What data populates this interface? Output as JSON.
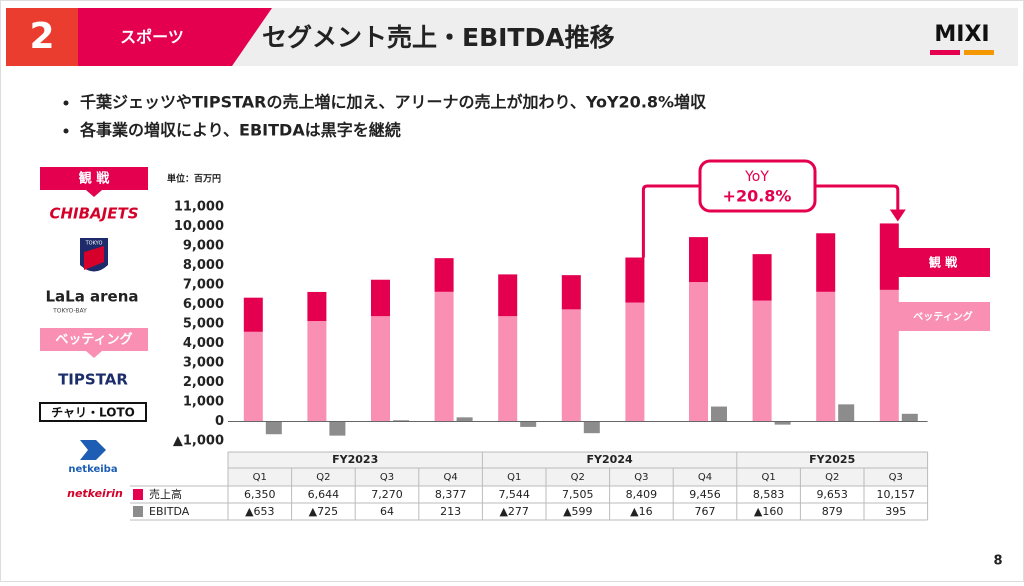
{
  "header": {
    "section_number": "2",
    "section": "スポーツ",
    "title": "セグメント売上・EBITDA推移",
    "logo": "MIXI"
  },
  "bullets": [
    "千葉ジェッツやTIPSTARの売上増に加え、アリーナの売上が加わり、YoY20.8%増収",
    "各事業の増収により、EBITDAは黒字を継続"
  ],
  "sidebar": {
    "watch": "観 戦",
    "watch_logos": [
      "CHIBAJETS",
      "TOKYO",
      "LaLa arena",
      "TOKYO-BAY"
    ],
    "betting": "ベッティング",
    "betting_logos": [
      "TIPSTAR",
      "チャリ・LOTO",
      "netkeiba",
      "netkeirin"
    ]
  },
  "chart_data": {
    "type": "stacked_bar",
    "unit_label": "単位：百万円",
    "groups": [
      {
        "label": "FY2023",
        "quarters": [
          "Q1",
          "Q2",
          "Q3",
          "Q4"
        ]
      },
      {
        "label": "FY2024",
        "quarters": [
          "Q1",
          "Q2",
          "Q3",
          "Q4"
        ]
      },
      {
        "label": "FY2025",
        "quarters": [
          "Q1",
          "Q2",
          "Q3"
        ]
      }
    ],
    "series": [
      {
        "name": "ベッティング",
        "color": "#f98fb3",
        "values": [
          4600,
          5150,
          5400,
          6650,
          5400,
          5750,
          6100,
          7150,
          6200,
          6650,
          6750
        ]
      },
      {
        "name": "観 戦",
        "color": "#e4004f",
        "values": [
          1750,
          1494,
          1870,
          1727,
          2144,
          1755,
          2309,
          2306,
          2383,
          3003,
          3407
        ]
      },
      {
        "name": "EBITDA",
        "color": "#8c8c8c",
        "values": [
          -653,
          -725,
          64,
          213,
          -277,
          -599,
          -16,
          767,
          -160,
          879,
          395
        ],
        "value_labels": [
          "▲653",
          "▲725",
          "64",
          "213",
          "▲277",
          "▲599",
          "▲16",
          "767",
          "▲160",
          "879",
          "395"
        ]
      }
    ],
    "revenue_row": {
      "label": "売上高",
      "cells": [
        "6,350",
        "6,644",
        "7,270",
        "8,377",
        "7,544",
        "7,505",
        "8,409",
        "9,456",
        "8,583",
        "9,653",
        "10,157"
      ]
    },
    "annotation": {
      "line1": "YoY",
      "line2": "+20.8%"
    },
    "ylim": [
      -1000,
      11000
    ],
    "yticks": [
      {
        "value": -1000,
        "label": "▲1,000"
      },
      0,
      {
        "value": 1000,
        "label": "1,000"
      },
      {
        "value": 2000,
        "label": "2,000"
      },
      {
        "value": 3000,
        "label": "3,000"
      },
      {
        "value": 4000,
        "label": "4,000"
      },
      {
        "value": 5000,
        "label": "5,000"
      },
      {
        "value": 6000,
        "label": "6,000"
      },
      {
        "value": 7000,
        "label": "7,000"
      },
      {
        "value": 8000,
        "label": "8,000"
      },
      {
        "value": 9000,
        "label": "9,000"
      },
      {
        "value": 10000,
        "label": "10,000"
      },
      {
        "value": 11000,
        "label": "11,000"
      }
    ]
  },
  "page_number": "8"
}
